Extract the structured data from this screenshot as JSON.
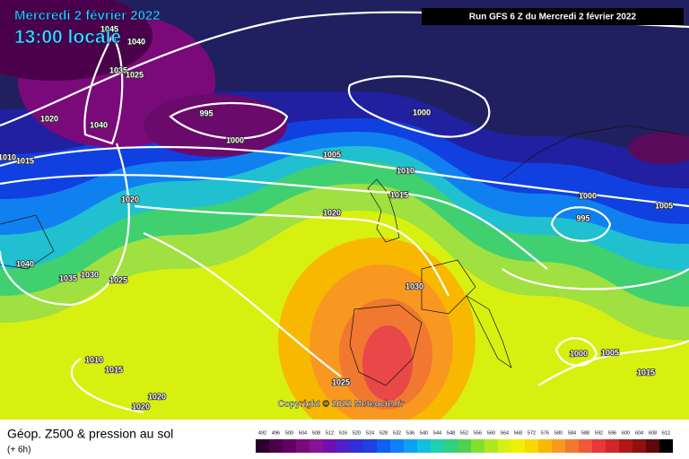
{
  "header": {
    "date": "Mercredi 2 février 2022",
    "time": "13:00 locale",
    "run": "Run GFS 6 Z du Mercredi 2 février 2022"
  },
  "isobar_labels": [
    "1045",
    "1040",
    "1035",
    "1025",
    "1020",
    "1040",
    "995",
    "1000",
    "1000",
    "1005",
    "1010",
    "1015",
    "1020",
    "1010",
    "1015",
    "1020",
    "1000",
    "995",
    "1005",
    "1040",
    "1035",
    "1030",
    "1025",
    "1030",
    "1010",
    "1015",
    "1000",
    "1005",
    "1015",
    "1020",
    "1020",
    "1025"
  ],
  "copyright": "Copyright © 2022 Meteociel.fr",
  "footer": {
    "title": "Géop. Z500 & pression au sol",
    "lead": "(+ 6h)"
  },
  "scale": {
    "values": [
      492,
      496,
      500,
      504,
      508,
      512,
      516,
      520,
      524,
      528,
      532,
      536,
      540,
      544,
      548,
      552,
      556,
      560,
      564,
      568,
      572,
      576,
      580,
      584,
      588,
      592,
      596,
      600,
      604,
      608,
      612
    ],
    "colors": [
      "#2a002a",
      "#4a004a",
      "#640064",
      "#7a0a7a",
      "#8a1098",
      "#7010b0",
      "#5020c8",
      "#3030d8",
      "#2040e0",
      "#1060f0",
      "#1080f8",
      "#10a0f0",
      "#10c0e0",
      "#20d0b0",
      "#30d080",
      "#50d050",
      "#80e030",
      "#b0e820",
      "#d8f010",
      "#f0f000",
      "#f8d800",
      "#f8b800",
      "#f89820",
      "#f07830",
      "#f05838",
      "#e83838",
      "#d02828",
      "#b01818",
      "#901010",
      "#600808",
      "#000000"
    ]
  }
}
